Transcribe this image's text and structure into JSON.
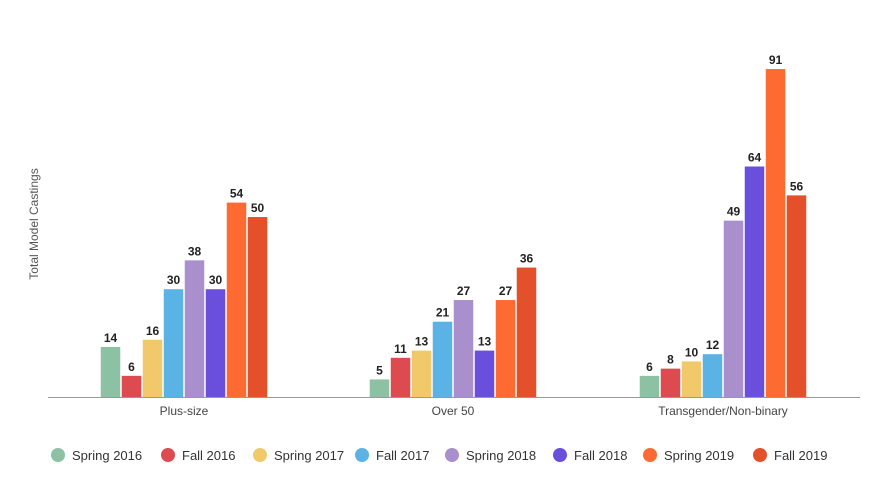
{
  "chart_data": {
    "type": "bar",
    "title": "",
    "xlabel": "",
    "ylabel": "Total Model Castings",
    "ylim": [
      0,
      96
    ],
    "grid": false,
    "legend_position": "bottom",
    "categories": [
      "Plus-size",
      "Over 50",
      "Transgender/Non-binary"
    ],
    "series": [
      {
        "name": "Spring 2016",
        "color": "#8cc1a3",
        "values": [
          14,
          5,
          6
        ]
      },
      {
        "name": "Fall 2016",
        "color": "#dd4b50",
        "values": [
          6,
          11,
          8
        ]
      },
      {
        "name": "Spring 2017",
        "color": "#f2c96a",
        "values": [
          16,
          13,
          10
        ]
      },
      {
        "name": "Fall 2017",
        "color": "#5bb2e4",
        "values": [
          30,
          21,
          12
        ]
      },
      {
        "name": "Spring 2018",
        "color": "#a98fcb",
        "values": [
          38,
          27,
          49
        ]
      },
      {
        "name": "Fall 2018",
        "color": "#6a4fdc",
        "values": [
          30,
          13,
          64
        ]
      },
      {
        "name": "Spring 2019",
        "color": "#fd6a32",
        "values": [
          54,
          27,
          91
        ]
      },
      {
        "name": "Fall 2019",
        "color": "#e4502a",
        "values": [
          50,
          36,
          56
        ]
      }
    ]
  }
}
